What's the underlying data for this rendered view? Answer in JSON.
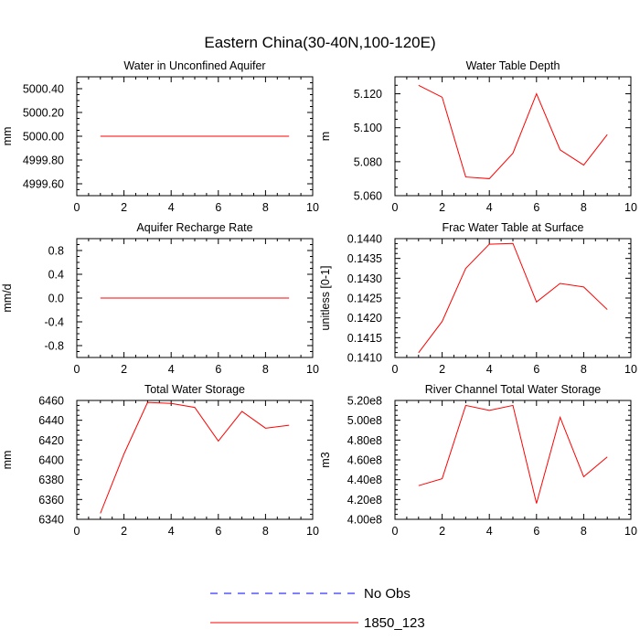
{
  "figure": {
    "title": "Eastern China(30-40N,100-120E)",
    "colors": {
      "model": "#ff0000",
      "obs": "#0000ff",
      "axis": "#000000"
    }
  },
  "legend": [
    {
      "label": "No Obs",
      "style": "dashed",
      "color": "#0000ff"
    },
    {
      "label": "1850_123",
      "style": "solid",
      "color": "#ff0000"
    }
  ],
  "chart_data": [
    {
      "type": "line",
      "title": "Water in Unconfined Aquifer",
      "ylabel": "mm",
      "xlabel": "",
      "xlim": [
        0,
        10
      ],
      "xticks": [
        0,
        2,
        4,
        6,
        8,
        10
      ],
      "xtick_labels": [
        "0",
        "2",
        "4",
        "6",
        "8",
        "10"
      ],
      "ylim": [
        4999.5,
        5000.5
      ],
      "yticks": [
        4999.6,
        4999.8,
        5000.0,
        5000.2,
        5000.4
      ],
      "ytick_labels": [
        "4999.60",
        "4999.80",
        "5000.00",
        "5000.20",
        "5000.40"
      ],
      "series": [
        {
          "name": "1850_123",
          "x": [
            1,
            2,
            3,
            4,
            5,
            6,
            7,
            8,
            9
          ],
          "values": [
            5000.0,
            5000.0,
            5000.0,
            5000.0,
            5000.0,
            5000.0,
            5000.0,
            5000.0,
            5000.0
          ]
        }
      ]
    },
    {
      "type": "line",
      "title": "Water Table Depth",
      "ylabel": "m",
      "xlabel": "",
      "xlim": [
        0,
        10
      ],
      "xticks": [
        0,
        2,
        4,
        6,
        8,
        10
      ],
      "xtick_labels": [
        "0",
        "2",
        "4",
        "6",
        "8",
        "10"
      ],
      "ylim": [
        5.06,
        5.13
      ],
      "yticks": [
        5.06,
        5.08,
        5.1,
        5.12
      ],
      "ytick_labels": [
        "5.060",
        "5.080",
        "5.100",
        "5.120"
      ],
      "series": [
        {
          "name": "1850_123",
          "x": [
            1,
            2,
            3,
            4,
            5,
            6,
            7,
            8,
            9
          ],
          "values": [
            5.125,
            5.118,
            5.071,
            5.07,
            5.085,
            5.12,
            5.087,
            5.078,
            5.096
          ]
        }
      ]
    },
    {
      "type": "line",
      "title": "Aquifer Recharge Rate",
      "ylabel": "mm/d",
      "xlabel": "",
      "xlim": [
        0,
        10
      ],
      "xticks": [
        0,
        2,
        4,
        6,
        8,
        10
      ],
      "xtick_labels": [
        "0",
        "2",
        "4",
        "6",
        "8",
        "10"
      ],
      "ylim": [
        -1.0,
        1.0
      ],
      "yticks": [
        -0.8,
        -0.4,
        0.0,
        0.4,
        0.8
      ],
      "ytick_labels": [
        "-0.8",
        "-0.4",
        "0.0",
        "0.4",
        "0.8"
      ],
      "series": [
        {
          "name": "1850_123",
          "x": [
            1,
            2,
            3,
            4,
            5,
            6,
            7,
            8,
            9
          ],
          "values": [
            0,
            0,
            0,
            0,
            0,
            0,
            0,
            0,
            0
          ]
        }
      ]
    },
    {
      "type": "line",
      "title": "Frac Water Table at Surface",
      "ylabel": "unitless [0-1]",
      "xlabel": "",
      "xlim": [
        0,
        10
      ],
      "xticks": [
        0,
        2,
        4,
        6,
        8,
        10
      ],
      "xtick_labels": [
        "0",
        "2",
        "4",
        "6",
        "8",
        "10"
      ],
      "ylim": [
        0.141,
        0.144
      ],
      "yticks": [
        0.141,
        0.1415,
        0.142,
        0.1425,
        0.143,
        0.1435,
        0.144
      ],
      "ytick_labels": [
        "0.1410",
        "0.1415",
        "0.1420",
        "0.1425",
        "0.1430",
        "0.1435",
        "0.1440"
      ],
      "series": [
        {
          "name": "1850_123",
          "x": [
            1,
            2,
            3,
            4,
            5,
            6,
            7,
            8,
            9
          ],
          "values": [
            0.14112,
            0.14191,
            0.14325,
            0.14386,
            0.14388,
            0.1424,
            0.14287,
            0.14278,
            0.14221
          ]
        }
      ]
    },
    {
      "type": "line",
      "title": "Total Water Storage",
      "ylabel": "mm",
      "xlabel": "",
      "xlim": [
        0,
        10
      ],
      "xticks": [
        0,
        2,
        4,
        6,
        8,
        10
      ],
      "xtick_labels": [
        "0",
        "2",
        "4",
        "6",
        "8",
        "10"
      ],
      "ylim": [
        6340,
        6460
      ],
      "yticks": [
        6340,
        6360,
        6380,
        6400,
        6420,
        6440,
        6460
      ],
      "ytick_labels": [
        "6340",
        "6360",
        "6380",
        "6400",
        "6420",
        "6440",
        "6460"
      ],
      "series": [
        {
          "name": "1850_123",
          "x": [
            1,
            2,
            3,
            4,
            5,
            6,
            7,
            8,
            9
          ],
          "values": [
            6346,
            6406,
            6458,
            6457,
            6453,
            6419,
            6449,
            6432,
            6435
          ]
        }
      ]
    },
    {
      "type": "line",
      "title": "River Channel Total Water Storage",
      "ylabel": "m3",
      "xlabel": "",
      "xlim": [
        0,
        10
      ],
      "xticks": [
        0,
        2,
        4,
        6,
        8,
        10
      ],
      "xtick_labels": [
        "0",
        "2",
        "4",
        "6",
        "8",
        "10"
      ],
      "ylim": [
        400000000,
        520000000
      ],
      "yticks": [
        400000000,
        420000000,
        440000000,
        460000000,
        480000000,
        500000000,
        520000000
      ],
      "ytick_labels": [
        "4.00e8",
        "4.20e8",
        "4.40e8",
        "4.60e8",
        "4.80e8",
        "5.00e8",
        "5.20e8"
      ],
      "series": [
        {
          "name": "1850_123",
          "x": [
            1,
            2,
            3,
            4,
            5,
            6,
            7,
            8,
            9
          ],
          "values": [
            434000000,
            441000000,
            515000000,
            510000000,
            515000000,
            416000000,
            503000000,
            443000000,
            463000000
          ]
        }
      ]
    }
  ]
}
